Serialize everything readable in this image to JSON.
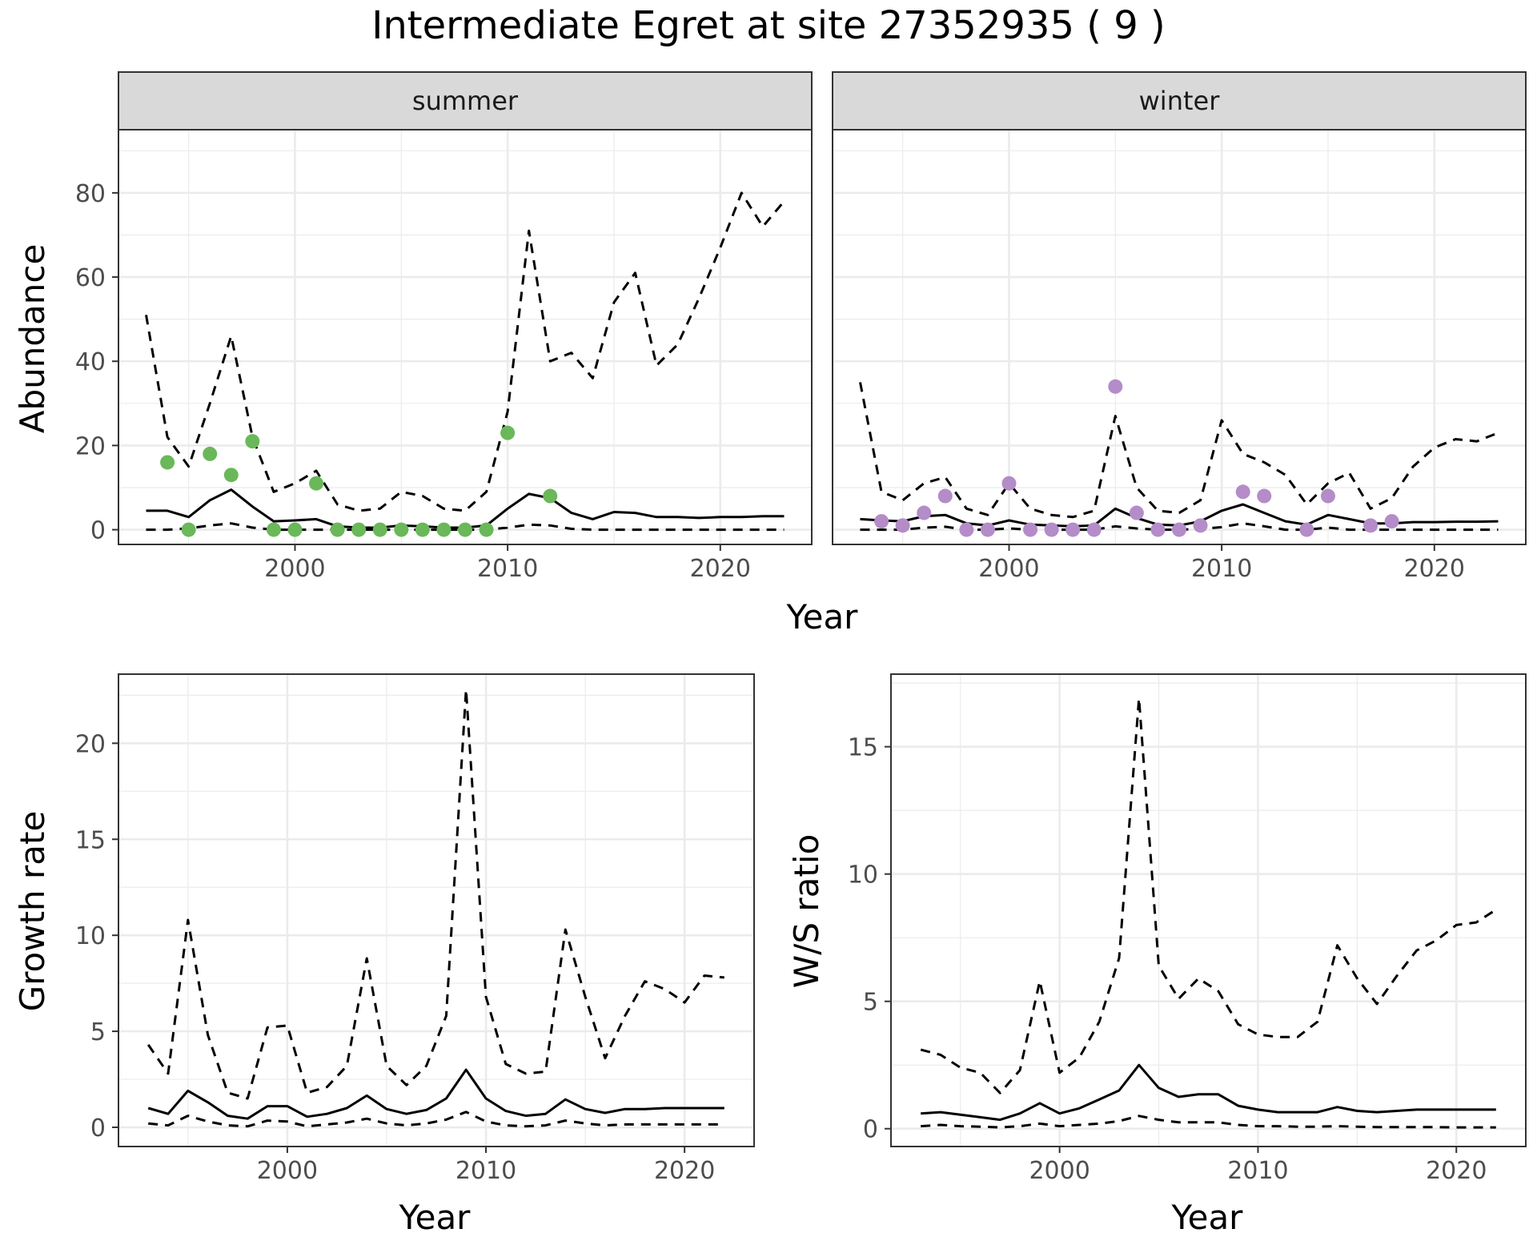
{
  "title": "Intermediate Egret at site 27352935 ( 9 )",
  "colors": {
    "summer_points": "#6ab85a",
    "winter_points": "#b48cc8",
    "lines": "#000000",
    "grid": "#ebebeb",
    "strip_fill": "#d9d9d9"
  },
  "chart_data": [
    {
      "type": "line",
      "panel": "summer",
      "strip_label": "summer",
      "xlabel": "Year",
      "ylabel": "Abundance",
      "xlim": [
        1991.7,
        2024.3
      ],
      "ylim": [
        -3.5,
        95
      ],
      "x_ticks": [
        2000,
        2010,
        2020
      ],
      "y_ticks": [
        0,
        20,
        40,
        60,
        80
      ],
      "grid": true,
      "series": [
        {
          "role": "upper",
          "style": "dashed",
          "x": [
            1993,
            1994,
            1995,
            1996,
            1997,
            1998,
            1999,
            2000,
            2001,
            2002,
            2003,
            2004,
            2005,
            2006,
            2007,
            2008,
            2009,
            2010,
            2011,
            2012,
            2013,
            2014,
            2015,
            2016,
            2017,
            2018,
            2019,
            2020,
            2021,
            2022,
            2023
          ],
          "y": [
            51,
            22,
            15,
            30,
            46,
            22,
            9,
            11,
            14,
            6,
            4.5,
            5,
            9,
            8,
            5,
            4.5,
            9,
            28,
            71,
            40,
            42,
            36,
            54,
            61,
            39,
            44,
            55,
            67,
            80,
            72,
            78
          ]
        },
        {
          "role": "mean",
          "style": "solid",
          "x": [
            1993,
            1994,
            1995,
            1996,
            1997,
            1998,
            1999,
            2000,
            2001,
            2002,
            2003,
            2004,
            2005,
            2006,
            2007,
            2008,
            2009,
            2010,
            2011,
            2012,
            2013,
            2014,
            2015,
            2016,
            2017,
            2018,
            2019,
            2020,
            2021,
            2022,
            2023
          ],
          "y": [
            4.5,
            4.5,
            3,
            7,
            9.5,
            5.5,
            2,
            2.2,
            2.5,
            0.8,
            0.5,
            0.5,
            1,
            0.8,
            0.5,
            0.5,
            1,
            5,
            8.5,
            7.5,
            4,
            2.5,
            4.2,
            4,
            3,
            3,
            2.8,
            3,
            3,
            3.2,
            3.2
          ]
        },
        {
          "role": "lower",
          "style": "dashed",
          "x": [
            1993,
            1994,
            1995,
            1996,
            1997,
            1998,
            1999,
            2000,
            2001,
            2002,
            2003,
            2004,
            2005,
            2006,
            2007,
            2008,
            2009,
            2010,
            2011,
            2012,
            2013,
            2014,
            2015,
            2016,
            2017,
            2018,
            2019,
            2020,
            2021,
            2022,
            2023
          ],
          "y": [
            0,
            0,
            0.3,
            1,
            1.5,
            0.5,
            0,
            0,
            0,
            0,
            0,
            0,
            0,
            0,
            0,
            0,
            0,
            0.5,
            1.2,
            1,
            0.2,
            0,
            0,
            0,
            0,
            0,
            0,
            0,
            0,
            0,
            0
          ]
        }
      ],
      "points": {
        "x": [
          1994,
          1995,
          1996,
          1997,
          1998,
          1999,
          2000,
          2001,
          2002,
          2003,
          2004,
          2005,
          2006,
          2007,
          2008,
          2009,
          2010,
          2012
        ],
        "y": [
          16,
          0,
          18,
          13,
          21,
          0,
          0,
          11,
          0,
          0,
          0,
          0,
          0,
          0,
          0,
          0,
          23,
          8
        ]
      }
    },
    {
      "type": "line",
      "panel": "winter",
      "strip_label": "winter",
      "xlabel": "Year",
      "ylabel": "Abundance",
      "xlim": [
        1991.7,
        2024.3
      ],
      "ylim": [
        -3.5,
        95
      ],
      "x_ticks": [
        2000,
        2010,
        2020
      ],
      "y_ticks": [
        0,
        20,
        40,
        60,
        80
      ],
      "grid": true,
      "series": [
        {
          "role": "upper",
          "style": "dashed",
          "x": [
            1993,
            1994,
            1995,
            1996,
            1997,
            1998,
            1999,
            2000,
            2001,
            2002,
            2003,
            2004,
            2005,
            2006,
            2007,
            2008,
            2009,
            2010,
            2011,
            2012,
            2013,
            2014,
            2015,
            2016,
            2017,
            2018,
            2019,
            2020,
            2021,
            2022,
            2023
          ],
          "y": [
            35,
            9,
            7,
            11,
            12.5,
            5,
            3.5,
            11,
            5,
            3.5,
            3,
            4.5,
            27,
            10,
            4.5,
            4,
            7,
            26,
            18,
            16,
            13,
            6,
            11,
            13.5,
            5,
            7.5,
            15,
            19.5,
            21.5,
            21,
            23
          ]
        },
        {
          "role": "mean",
          "style": "solid",
          "x": [
            1993,
            1994,
            1995,
            1996,
            1997,
            1998,
            1999,
            2000,
            2001,
            2002,
            2003,
            2004,
            2005,
            2006,
            2007,
            2008,
            2009,
            2010,
            2011,
            2012,
            2013,
            2014,
            2015,
            2016,
            2017,
            2018,
            2019,
            2020,
            2021,
            2022,
            2023
          ],
          "y": [
            2.5,
            2.2,
            2,
            3.2,
            3.5,
            1.5,
            1,
            2.2,
            1.2,
            1,
            0.8,
            1,
            5,
            2.8,
            1.2,
            1,
            2,
            4.5,
            6,
            4,
            2,
            1.2,
            3.5,
            2.5,
            1.5,
            1.5,
            1.8,
            1.8,
            1.9,
            1.9,
            2
          ]
        },
        {
          "role": "lower",
          "style": "dashed",
          "x": [
            1993,
            1994,
            1995,
            1996,
            1997,
            1998,
            1999,
            2000,
            2001,
            2002,
            2003,
            2004,
            2005,
            2006,
            2007,
            2008,
            2009,
            2010,
            2011,
            2012,
            2013,
            2014,
            2015,
            2016,
            2017,
            2018,
            2019,
            2020,
            2021,
            2022,
            2023
          ],
          "y": [
            0,
            0,
            0,
            0.5,
            0.7,
            0,
            0,
            0.3,
            0,
            0,
            0,
            0,
            0.8,
            0.3,
            0,
            0,
            0.2,
            0.6,
            1.5,
            0.8,
            0,
            0,
            0.5,
            0,
            0,
            0,
            0,
            0,
            0,
            0,
            0
          ]
        }
      ],
      "points": {
        "x": [
          1994,
          1995,
          1996,
          1997,
          1998,
          1999,
          2000,
          2001,
          2002,
          2003,
          2004,
          2005,
          2006,
          2007,
          2008,
          2009,
          2011,
          2012,
          2014,
          2015,
          2017,
          2018
        ],
        "y": [
          2,
          1,
          4,
          8,
          0,
          0,
          11,
          0,
          0,
          0,
          0,
          34,
          4,
          0,
          0,
          1,
          9,
          8,
          0,
          8,
          1,
          2
        ]
      }
    },
    {
      "type": "line",
      "panel": "growth",
      "xlabel": "Year",
      "ylabel": "Growth rate",
      "xlim": [
        1991.5,
        2023.5
      ],
      "ylim": [
        -1.0,
        23.6
      ],
      "x_ticks": [
        2000,
        2010,
        2020
      ],
      "y_ticks": [
        0,
        5,
        10,
        15,
        20
      ],
      "grid": true,
      "series": [
        {
          "role": "upper",
          "style": "dashed",
          "x": [
            1993,
            1994,
            1995,
            1996,
            1997,
            1998,
            1999,
            2000,
            2001,
            2002,
            2003,
            2004,
            2005,
            2006,
            2007,
            2008,
            2009,
            2010,
            2011,
            2012,
            2013,
            2014,
            2015,
            2016,
            2017,
            2018,
            2019,
            2020,
            2021,
            2022
          ],
          "y": [
            4.3,
            2.8,
            10.8,
            4.8,
            1.8,
            1.5,
            5.2,
            5.3,
            1.8,
            2.1,
            3.2,
            8.8,
            3.2,
            2.2,
            3.2,
            5.8,
            22.8,
            6.8,
            3.3,
            2.8,
            2.9,
            10.3,
            6.8,
            3.6,
            5.8,
            7.6,
            7.2,
            6.5,
            7.9,
            7.8
          ]
        },
        {
          "role": "mean",
          "style": "solid",
          "x": [
            1993,
            1994,
            1995,
            1996,
            1997,
            1998,
            1999,
            2000,
            2001,
            2002,
            2003,
            2004,
            2005,
            2006,
            2007,
            2008,
            2009,
            2010,
            2011,
            2012,
            2013,
            2014,
            2015,
            2016,
            2017,
            2018,
            2019,
            2020,
            2021,
            2022
          ],
          "y": [
            1.0,
            0.7,
            1.9,
            1.3,
            0.6,
            0.45,
            1.1,
            1.1,
            0.55,
            0.7,
            1.0,
            1.65,
            0.95,
            0.7,
            0.9,
            1.5,
            3.0,
            1.5,
            0.85,
            0.6,
            0.7,
            1.45,
            0.95,
            0.75,
            0.95,
            0.95,
            1.0,
            1.0,
            1.0,
            1.0
          ]
        },
        {
          "role": "lower",
          "style": "dashed",
          "x": [
            1993,
            1994,
            1995,
            1996,
            1997,
            1998,
            1999,
            2000,
            2001,
            2002,
            2003,
            2004,
            2005,
            2006,
            2007,
            2008,
            2009,
            2010,
            2011,
            2012,
            2013,
            2014,
            2015,
            2016,
            2017,
            2018,
            2019,
            2020,
            2021,
            2022
          ],
          "y": [
            0.2,
            0.1,
            0.6,
            0.3,
            0.1,
            0.05,
            0.35,
            0.3,
            0.05,
            0.15,
            0.25,
            0.45,
            0.2,
            0.1,
            0.2,
            0.4,
            0.8,
            0.3,
            0.1,
            0.05,
            0.1,
            0.35,
            0.2,
            0.1,
            0.15,
            0.15,
            0.15,
            0.15,
            0.15,
            0.15
          ]
        }
      ]
    },
    {
      "type": "line",
      "panel": "ws_ratio",
      "xlabel": "Year",
      "ylabel": "W/S ratio",
      "xlim": [
        1991.5,
        2023.5
      ],
      "ylim": [
        -0.7,
        17.85
      ],
      "x_ticks": [
        2000,
        2010,
        2020
      ],
      "y_ticks": [
        0,
        5,
        10,
        15
      ],
      "grid": true,
      "series": [
        {
          "role": "upper",
          "style": "dashed",
          "x": [
            1993,
            1994,
            1995,
            1996,
            1997,
            1998,
            1999,
            2000,
            2001,
            2002,
            2003,
            2004,
            2005,
            2006,
            2007,
            2008,
            2009,
            2010,
            2011,
            2012,
            2013,
            2014,
            2015,
            2016,
            2017,
            2018,
            2019,
            2020,
            2021,
            2022
          ],
          "y": [
            3.1,
            2.9,
            2.4,
            2.2,
            1.4,
            2.3,
            5.8,
            2.2,
            2.8,
            4.2,
            6.7,
            16.9,
            6.4,
            5.1,
            5.9,
            5.4,
            4.1,
            3.7,
            3.6,
            3.6,
            4.2,
            7.2,
            5.9,
            4.9,
            6.0,
            7.0,
            7.4,
            8.0,
            8.1,
            8.6
          ]
        },
        {
          "role": "mean",
          "style": "solid",
          "x": [
            1993,
            1994,
            1995,
            1996,
            1997,
            1998,
            1999,
            2000,
            2001,
            2002,
            2003,
            2004,
            2005,
            2006,
            2007,
            2008,
            2009,
            2010,
            2011,
            2012,
            2013,
            2014,
            2015,
            2016,
            2017,
            2018,
            2019,
            2020,
            2021,
            2022
          ],
          "y": [
            0.6,
            0.65,
            0.55,
            0.45,
            0.35,
            0.6,
            1.0,
            0.6,
            0.8,
            1.15,
            1.5,
            2.5,
            1.6,
            1.25,
            1.35,
            1.35,
            0.9,
            0.75,
            0.65,
            0.65,
            0.65,
            0.85,
            0.7,
            0.65,
            0.7,
            0.75,
            0.75,
            0.75,
            0.75,
            0.75
          ]
        },
        {
          "role": "lower",
          "style": "dashed",
          "x": [
            1993,
            1994,
            1995,
            1996,
            1997,
            1998,
            1999,
            2000,
            2001,
            2002,
            2003,
            2004,
            2005,
            2006,
            2007,
            2008,
            2009,
            2010,
            2011,
            2012,
            2013,
            2014,
            2015,
            2016,
            2017,
            2018,
            2019,
            2020,
            2021,
            2022
          ],
          "y": [
            0.1,
            0.15,
            0.1,
            0.08,
            0.05,
            0.1,
            0.2,
            0.1,
            0.15,
            0.2,
            0.3,
            0.5,
            0.35,
            0.25,
            0.25,
            0.25,
            0.15,
            0.1,
            0.1,
            0.08,
            0.08,
            0.1,
            0.08,
            0.06,
            0.06,
            0.06,
            0.06,
            0.05,
            0.05,
            0.05
          ]
        }
      ]
    }
  ]
}
